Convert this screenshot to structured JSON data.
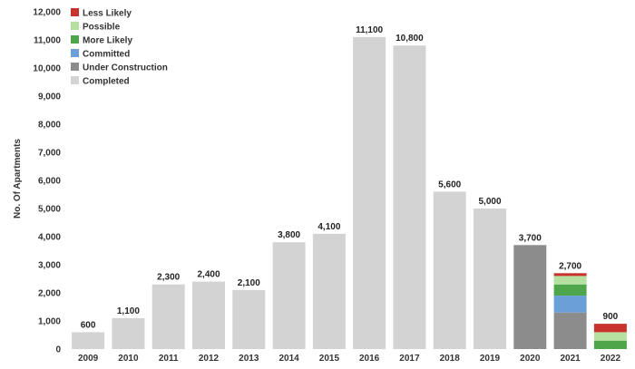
{
  "chart_data": {
    "type": "bar",
    "stacked": true,
    "ylabel": "No. Of Apartments",
    "xlabel": "",
    "ylim": [
      0,
      12000
    ],
    "ytick_step": 1000,
    "grid": false,
    "legend_position": "top-left",
    "categories": [
      "2009",
      "2010",
      "2011",
      "2012",
      "2013",
      "2014",
      "2015",
      "2016",
      "2017",
      "2018",
      "2019",
      "2020",
      "2021",
      "2022"
    ],
    "series": [
      {
        "name": "Completed",
        "color": "#d3d3d3",
        "values": [
          600,
          1100,
          2300,
          2400,
          2100,
          3800,
          4100,
          11100,
          10800,
          5600,
          5000,
          0,
          0,
          0
        ]
      },
      {
        "name": "Under Construction",
        "color": "#8c8c8c",
        "values": [
          0,
          0,
          0,
          0,
          0,
          0,
          0,
          0,
          0,
          0,
          0,
          3700,
          1300,
          0
        ]
      },
      {
        "name": "Committed",
        "color": "#6a9fd8",
        "values": [
          0,
          0,
          0,
          0,
          0,
          0,
          0,
          0,
          0,
          0,
          0,
          0,
          600,
          0
        ]
      },
      {
        "name": "More Likely",
        "color": "#4ea54a",
        "values": [
          0,
          0,
          0,
          0,
          0,
          0,
          0,
          0,
          0,
          0,
          0,
          0,
          400,
          300
        ]
      },
      {
        "name": "Possible",
        "color": "#b5e0a0",
        "values": [
          0,
          0,
          0,
          0,
          0,
          0,
          0,
          0,
          0,
          0,
          0,
          0,
          300,
          300
        ]
      },
      {
        "name": "Less Likely",
        "color": "#c8332e",
        "values": [
          0,
          0,
          0,
          0,
          0,
          0,
          0,
          0,
          0,
          0,
          0,
          0,
          100,
          300
        ]
      }
    ],
    "totals": [
      "600",
      "1,100",
      "2,300",
      "2,400",
      "2,100",
      "3,800",
      "4,100",
      "11,100",
      "10,800",
      "5,600",
      "5,000",
      "3,700",
      "2,700",
      "900"
    ],
    "legend_order": [
      "Less Likely",
      "Possible",
      "More Likely",
      "Committed",
      "Under Construction",
      "Completed"
    ]
  }
}
